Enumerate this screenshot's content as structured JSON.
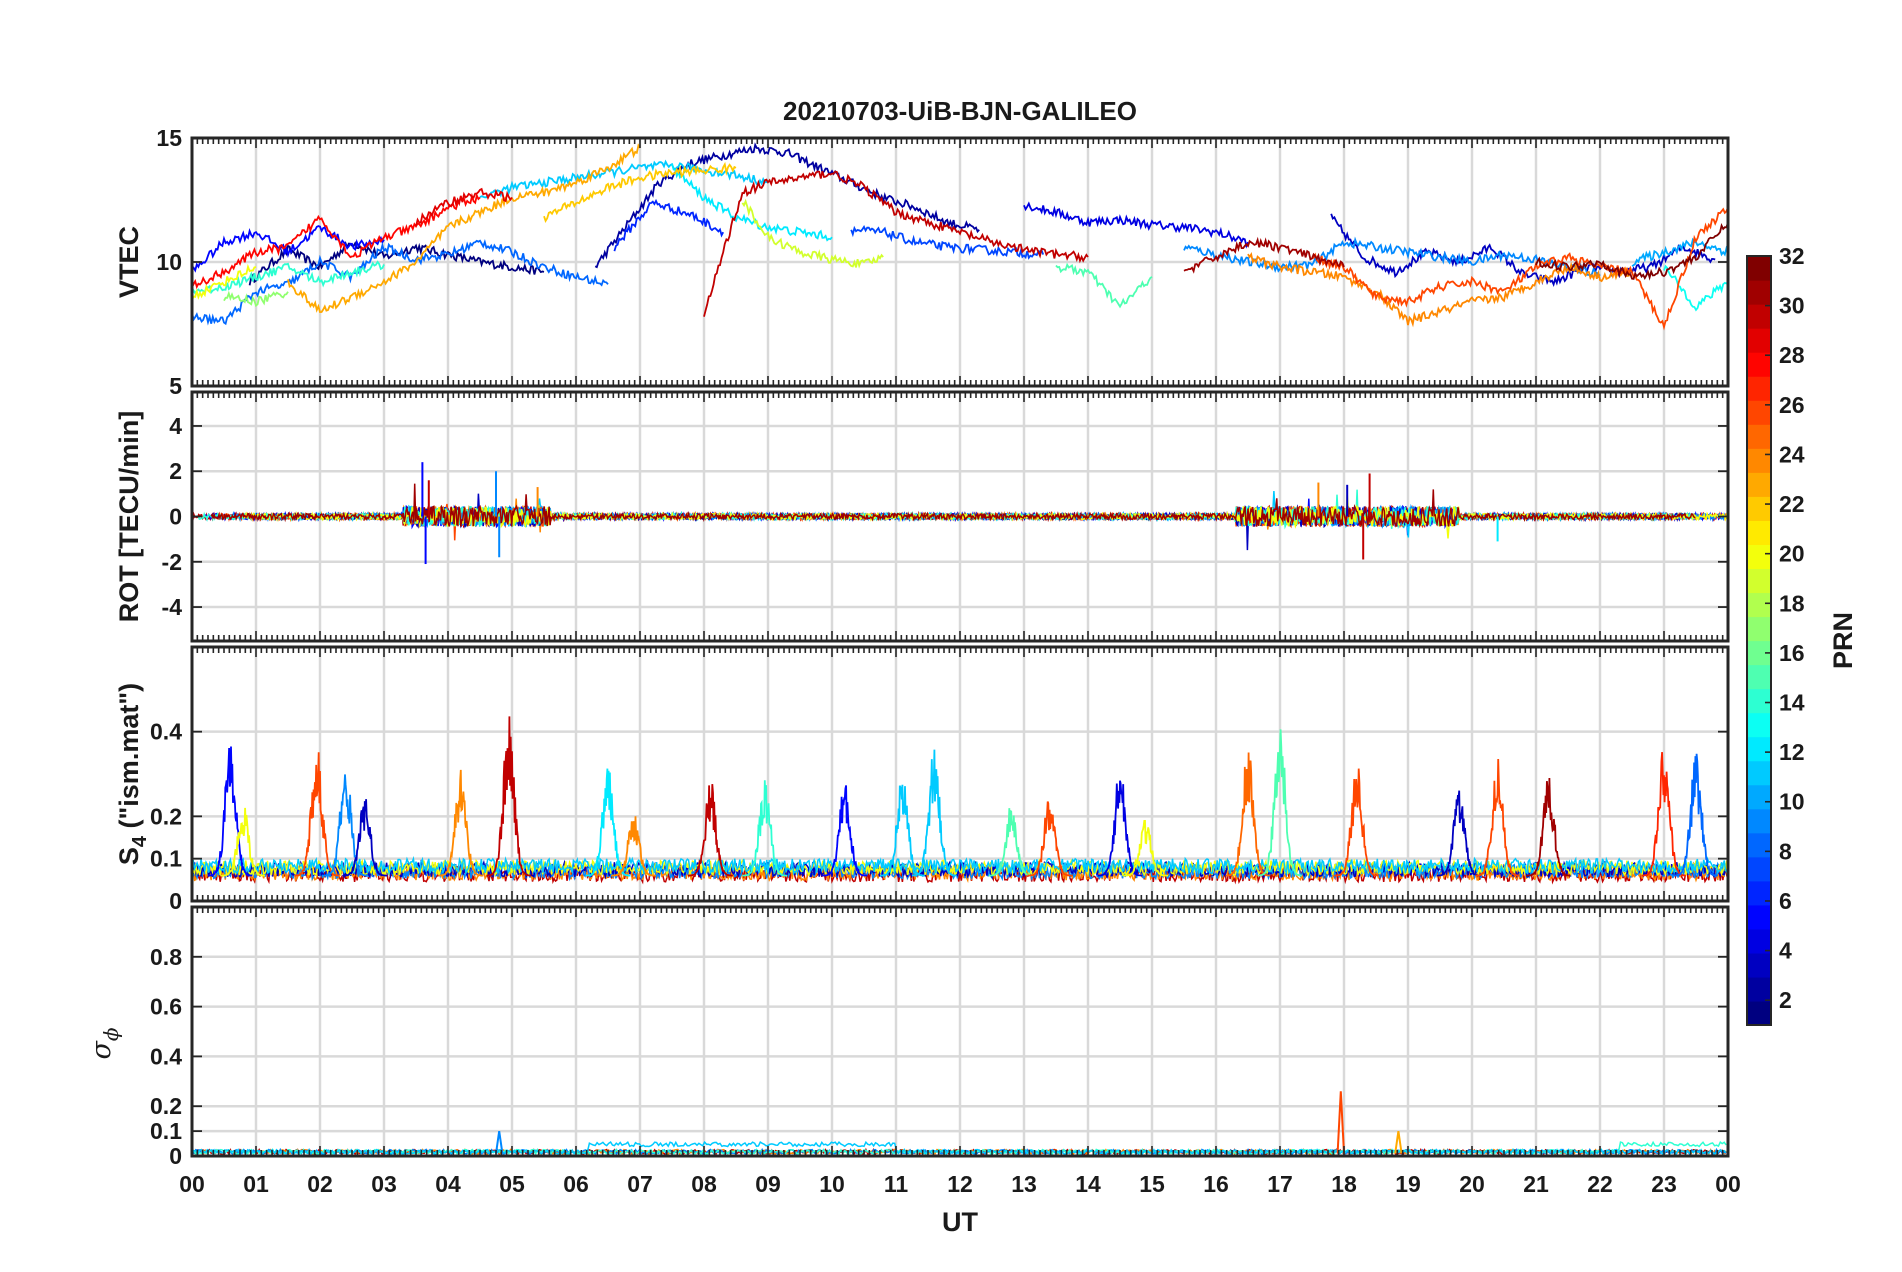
{
  "chart_data": {
    "type": "line",
    "title": "20210703-UiB-BJN-GALILEO",
    "xlabel": "UT",
    "x_ticks": [
      "00",
      "01",
      "02",
      "03",
      "04",
      "05",
      "06",
      "07",
      "08",
      "09",
      "10",
      "11",
      "12",
      "13",
      "14",
      "15",
      "16",
      "17",
      "18",
      "19",
      "20",
      "21",
      "22",
      "23",
      "00"
    ],
    "xlim": [
      0,
      24
    ],
    "colorbar": {
      "label": "PRN",
      "range": [
        1,
        32
      ],
      "ticks": [
        "2",
        "4",
        "6",
        "8",
        "10",
        "12",
        "14",
        "16",
        "18",
        "20",
        "22",
        "24",
        "26",
        "28",
        "30",
        "32"
      ],
      "colormap": "jet"
    },
    "panels": [
      {
        "id": "vtec",
        "ylabel": "VTEC",
        "ylim": [
          5,
          15
        ],
        "yticks": [
          5,
          10,
          15
        ],
        "ytick_labels": [
          "5",
          "10",
          "15"
        ],
        "series": [
          {
            "prn": 1,
            "x": [
              0.9,
              1.5,
              2.0,
              2.5,
              3.0,
              3.5,
              4.0,
              4.5,
              5.0,
              5.5
            ],
            "y": [
              9.2,
              10.5,
              9.8,
              10.8,
              10.2,
              10.6,
              10.3,
              10.0,
              9.8,
              9.6
            ]
          },
          {
            "prn": 2,
            "x": [
              6.3,
              6.8,
              7.3,
              7.8,
              8.3,
              8.8,
              9.3,
              9.8,
              10.3,
              10.8,
              11.3,
              11.8,
              12.3
            ],
            "y": [
              9.8,
              11.5,
              13.2,
              14.0,
              14.3,
              14.6,
              14.4,
              13.8,
              13.2,
              12.6,
              12.2,
              11.6,
              11.3
            ]
          },
          {
            "prn": 3,
            "x": [
              17.8,
              18.3,
              18.8,
              19.3,
              19.8,
              20.3,
              20.8,
              21.3,
              21.8,
              22.3,
              22.8,
              23.3,
              23.8
            ],
            "y": [
              11.8,
              10.2,
              9.6,
              10.4,
              10.0,
              10.6,
              9.5,
              9.2,
              9.8,
              9.6,
              9.8,
              10.6,
              10.1
            ]
          },
          {
            "prn": 4,
            "x": [
              13.0,
              13.5,
              14.0,
              14.5,
              15.0,
              15.5,
              16.0,
              16.5
            ],
            "y": [
              12.3,
              12.0,
              11.6,
              11.7,
              11.5,
              11.4,
              11.2,
              10.8
            ]
          },
          {
            "prn": 5,
            "x": [
              0.0,
              0.5,
              1.0,
              1.5,
              2.0,
              2.5,
              3.0
            ],
            "y": [
              9.6,
              10.8,
              11.2,
              10.4,
              11.4,
              10.6,
              10.9
            ]
          },
          {
            "prn": 6,
            "x": [
              6.6,
              7.2,
              7.8,
              8.3
            ],
            "y": [
              10.6,
              12.4,
              11.9,
              11.2
            ]
          },
          {
            "prn": 7,
            "x": [
              10.3,
              10.8,
              11.3,
              11.8,
              12.3,
              12.8,
              13.3
            ],
            "y": [
              11.3,
              11.2,
              10.8,
              10.6,
              10.5,
              10.4,
              10.3
            ]
          },
          {
            "prn": 8,
            "x": [
              0.0,
              0.5,
              1.0,
              1.5,
              2.0,
              2.5,
              3.0,
              3.5,
              4.0,
              4.5,
              5.0,
              5.5,
              6.0,
              6.5
            ],
            "y": [
              7.8,
              7.6,
              8.8,
              9.1,
              10.0,
              9.4,
              10.6,
              10.1,
              10.3,
              10.8,
              10.4,
              9.8,
              9.4,
              9.1
            ]
          },
          {
            "prn": 9,
            "x": [
              15.5,
              16.0,
              16.5,
              17.0,
              17.5,
              18.0,
              18.5,
              19.0,
              19.5,
              20.0,
              20.5,
              21.0,
              21.5,
              22.0
            ],
            "y": [
              10.6,
              10.3,
              10.0,
              9.8,
              9.9,
              10.8,
              10.6,
              10.4,
              10.2,
              10.0,
              10.3,
              10.1,
              9.8,
              9.5
            ]
          },
          {
            "prn": 10,
            "x": [
              22.5,
              23.0,
              23.5,
              24.0
            ],
            "y": [
              10.0,
              10.4,
              10.8,
              10.4
            ]
          },
          {
            "prn": 11,
            "x": [
              4.5,
              5.0,
              5.5,
              6.0,
              6.5,
              7.0,
              7.5,
              8.0,
              8.5,
              9.0
            ],
            "y": [
              12.6,
              13.0,
              13.2,
              13.4,
              13.6,
              13.8,
              13.9,
              13.7,
              13.5,
              13.2
            ]
          },
          {
            "prn": 12,
            "x": [
              7.5,
              8.0,
              8.5,
              9.0,
              9.5,
              10.0
            ],
            "y": [
              13.8,
              12.6,
              11.8,
              11.4,
              11.2,
              11.0
            ]
          },
          {
            "prn": 13,
            "x": [
              23.0,
              23.5,
              24.0
            ],
            "y": [
              9.8,
              8.2,
              9.2
            ]
          },
          {
            "prn": 14,
            "x": [
              0.0,
              0.5,
              1.0,
              1.5,
              2.0,
              2.5,
              3.0
            ],
            "y": [
              8.8,
              9.0,
              9.4,
              9.8,
              9.2,
              9.6,
              9.9
            ]
          },
          {
            "prn": 15,
            "x": [
              13.5,
              14.0,
              14.5,
              15.0
            ],
            "y": [
              9.8,
              9.6,
              8.2,
              9.4
            ]
          },
          {
            "prn": 17,
            "x": [
              0.5,
              1.0,
              1.5
            ],
            "y": [
              8.6,
              8.4,
              8.8
            ]
          },
          {
            "prn": 19,
            "x": [
              8.6,
              9.0,
              9.5,
              10.0,
              10.5,
              10.8
            ],
            "y": [
              12.5,
              11.0,
              10.4,
              10.1,
              9.9,
              10.2
            ]
          },
          {
            "prn": 20,
            "x": [
              0.0,
              0.5,
              1.0
            ],
            "y": [
              8.6,
              9.2,
              9.8
            ]
          },
          {
            "prn": 22,
            "x": [
              5.5,
              6.0,
              6.5,
              7.0,
              7.5,
              8.0,
              8.5
            ],
            "y": [
              11.8,
              12.4,
              13.0,
              13.4,
              13.6,
              13.7,
              13.8
            ]
          },
          {
            "prn": 23,
            "x": [
              1.5,
              2.0,
              2.5,
              3.0,
              3.5,
              4.0,
              4.5,
              5.0,
              5.5,
              6.0,
              6.5,
              7.0
            ],
            "y": [
              9.2,
              8.0,
              8.6,
              9.2,
              10.0,
              11.4,
              12.0,
              12.6,
              12.8,
              13.2,
              13.8,
              14.6
            ]
          },
          {
            "prn": 24,
            "x": [
              16.5,
              17.0,
              17.5,
              18.0,
              18.5,
              19.0,
              19.5,
              20.0,
              20.5,
              21.0,
              21.5,
              22.0,
              22.5
            ],
            "y": [
              10.2,
              9.8,
              9.6,
              9.4,
              8.8,
              7.6,
              8.0,
              8.4,
              8.6,
              9.2,
              9.8,
              9.4,
              9.6
            ]
          },
          {
            "prn": 26,
            "x": [
              17.5,
              18.0,
              18.5,
              19.0,
              19.5,
              20.0,
              20.5,
              21.0,
              21.5,
              22.0,
              22.5,
              23.0,
              23.5,
              24.0
            ],
            "y": [
              10.2,
              9.8,
              8.6,
              8.4,
              9.0,
              9.2,
              8.8,
              9.8,
              10.2,
              9.8,
              9.6,
              7.4,
              11.0,
              12.2
            ]
          },
          {
            "prn": 28,
            "x": [
              0.0,
              0.5,
              1.0,
              1.5,
              2.0,
              2.5,
              3.0,
              3.5,
              4.0,
              4.5
            ],
            "y": [
              9.0,
              9.6,
              10.4,
              10.6,
              11.8,
              10.2,
              11.0,
              11.4,
              12.2,
              12.6
            ]
          },
          {
            "prn": 29,
            "x": [
              3.5,
              4.0,
              4.5,
              5.0
            ],
            "y": [
              11.6,
              12.4,
              12.8,
              12.6
            ]
          },
          {
            "prn": 30,
            "x": [
              8.0,
              8.3,
              8.6,
              9.0,
              9.5,
              10.0,
              10.5,
              11.0,
              11.5,
              12.0,
              12.5,
              13.0,
              13.5,
              14.0
            ],
            "y": [
              7.8,
              10.4,
              12.8,
              13.2,
              13.4,
              13.6,
              13.0,
              12.0,
              11.6,
              11.2,
              10.8,
              10.5,
              10.3,
              10.2
            ]
          },
          {
            "prn": 31,
            "x": [
              15.5,
              16.0,
              16.5,
              17.0,
              17.5,
              18.0
            ],
            "y": [
              9.6,
              10.2,
              10.8,
              10.6,
              10.2,
              9.8
            ]
          },
          {
            "prn": 32,
            "x": [
              21.0,
              21.5,
              22.0,
              22.5,
              23.0,
              23.5,
              24.0
            ],
            "y": [
              10.0,
              9.8,
              10.0,
              9.4,
              9.6,
              10.2,
              11.6
            ]
          }
        ]
      },
      {
        "id": "rot",
        "ylabel": "ROT [TECU/min]",
        "ylim": [
          -5.5,
          5.5
        ],
        "yticks": [
          -4,
          -2,
          0,
          2,
          4
        ],
        "ytick_labels": [
          "-4",
          "-2",
          "0",
          "2",
          "4"
        ],
        "spikes": [
          {
            "prn": 5,
            "x": 3.6,
            "y": 2.4
          },
          {
            "prn": 5,
            "x": 3.65,
            "y": -2.1
          },
          {
            "prn": 9,
            "x": 4.75,
            "y": 2.0
          },
          {
            "prn": 9,
            "x": 4.8,
            "y": -1.8
          },
          {
            "prn": 30,
            "x": 3.7,
            "y": 1.6
          },
          {
            "prn": 30,
            "x": 18.4,
            "y": 1.9
          },
          {
            "prn": 30,
            "x": 18.3,
            "y": -1.9
          },
          {
            "prn": 24,
            "x": 17.6,
            "y": 1.5
          },
          {
            "prn": 24,
            "x": 5.4,
            "y": 1.3
          },
          {
            "prn": 3,
            "x": 18.05,
            "y": 1.4
          },
          {
            "prn": 12,
            "x": 20.4,
            "y": -1.1
          }
        ]
      },
      {
        "id": "s4",
        "ylabel": "S4 (\"ism.mat\")",
        "ylabel_main": "S",
        "ylabel_sub": "4",
        "ylabel_rest": " (\"ism.mat\")",
        "ylim": [
          0,
          0.6
        ],
        "yticks": [
          0,
          0.1,
          0.2,
          0.4
        ],
        "ytick_labels": [
          "0",
          "0.1",
          "0.2",
          "0.4"
        ],
        "peaks": [
          {
            "prn": 5,
            "x": 0.6,
            "y": 0.39
          },
          {
            "prn": 20,
            "x": 0.8,
            "y": 0.23
          },
          {
            "prn": 26,
            "x": 1.95,
            "y": 0.37
          },
          {
            "prn": 9,
            "x": 2.4,
            "y": 0.33
          },
          {
            "prn": 3,
            "x": 2.7,
            "y": 0.25
          },
          {
            "prn": 24,
            "x": 4.2,
            "y": 0.31
          },
          {
            "prn": 30,
            "x": 4.95,
            "y": 0.44
          },
          {
            "prn": 12,
            "x": 6.5,
            "y": 0.33
          },
          {
            "prn": 24,
            "x": 6.9,
            "y": 0.21
          },
          {
            "prn": 30,
            "x": 8.1,
            "y": 0.29
          },
          {
            "prn": 14,
            "x": 8.95,
            "y": 0.29
          },
          {
            "prn": 5,
            "x": 10.2,
            "y": 0.28
          },
          {
            "prn": 11,
            "x": 11.1,
            "y": 0.3
          },
          {
            "prn": 11,
            "x": 11.6,
            "y": 0.37
          },
          {
            "prn": 15,
            "x": 12.8,
            "y": 0.23
          },
          {
            "prn": 26,
            "x": 13.4,
            "y": 0.25
          },
          {
            "prn": 4,
            "x": 14.5,
            "y": 0.32
          },
          {
            "prn": 20,
            "x": 14.9,
            "y": 0.2
          },
          {
            "prn": 25,
            "x": 16.5,
            "y": 0.37
          },
          {
            "prn": 15,
            "x": 17.0,
            "y": 0.42
          },
          {
            "prn": 26,
            "x": 18.2,
            "y": 0.33
          },
          {
            "prn": 3,
            "x": 19.8,
            "y": 0.27
          },
          {
            "prn": 26,
            "x": 20.4,
            "y": 0.34
          },
          {
            "prn": 31,
            "x": 21.2,
            "y": 0.3
          },
          {
            "prn": 27,
            "x": 23.0,
            "y": 0.37
          },
          {
            "prn": 8,
            "x": 23.5,
            "y": 0.35
          }
        ]
      },
      {
        "id": "sigma",
        "ylabel": "σϕ",
        "ylabel_main": "σ",
        "ylabel_sub": "ϕ",
        "ylim": [
          0,
          1.0
        ],
        "yticks": [
          0,
          0.1,
          0.2,
          0.4,
          0.6,
          0.8
        ],
        "ytick_labels": [
          "0",
          "0.1",
          "0.2",
          "0.4",
          "0.6",
          "0.8"
        ],
        "peaks": [
          {
            "prn": 9,
            "x": 4.8,
            "y": 0.1
          },
          {
            "prn": 26,
            "x": 17.95,
            "y": 0.26
          },
          {
            "prn": 23,
            "x": 18.85,
            "y": 0.1
          }
        ]
      }
    ]
  }
}
